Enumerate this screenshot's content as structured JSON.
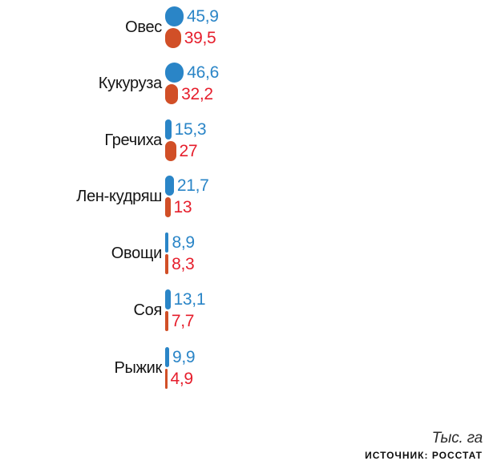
{
  "chart_data": {
    "type": "bar",
    "orientation": "horizontal",
    "title": "",
    "unit_label": "Тыс. га",
    "source_label": "ИСТОЧНИК: РОССТАТ",
    "legend": "none",
    "categories": [
      "Овес",
      "Кукуруза",
      "Гречиха",
      "Лен-кудряш",
      "Овощи",
      "Соя",
      "Рыжик"
    ],
    "series": [
      {
        "name": "series-blue",
        "color": "#2a85c7",
        "label_color": "#2a85c7",
        "values": [
          45.9,
          46.6,
          15.3,
          21.7,
          8.9,
          13.1,
          9.9
        ],
        "labels": [
          "45,9",
          "46,6",
          "15,3",
          "21,7",
          "8,9",
          "13,1",
          "9,9"
        ]
      },
      {
        "name": "series-red",
        "color": "#d14f27",
        "label_color": "#e61e2c",
        "values": [
          39.5,
          32.2,
          27,
          13,
          8.3,
          7.7,
          4.9
        ],
        "labels": [
          "39,5",
          "32,2",
          "27",
          "13",
          "8,3",
          "7,7",
          "4,9"
        ]
      }
    ],
    "xlim": [
      0,
      50
    ]
  }
}
